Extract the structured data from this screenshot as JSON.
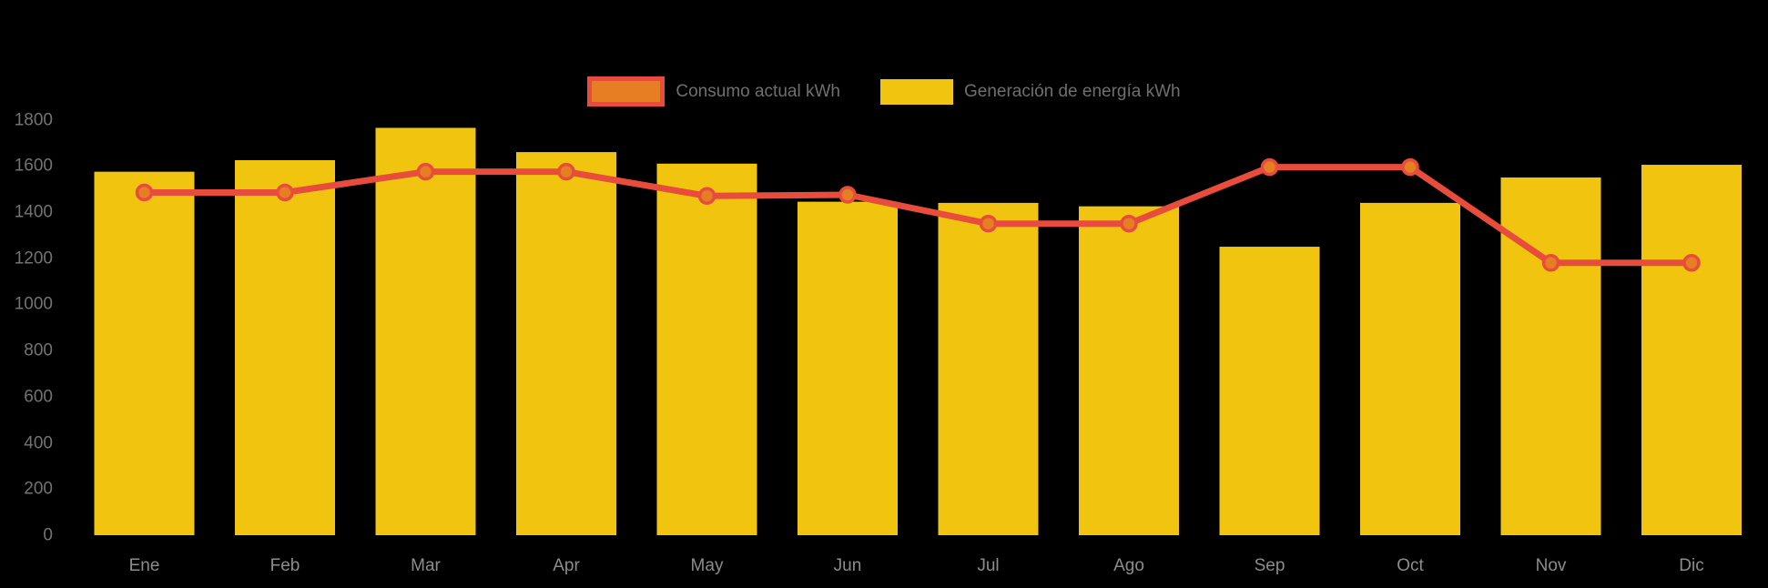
{
  "chart_data": {
    "type": "combo-bar-line",
    "title": "",
    "xlabel": "",
    "ylabel": "",
    "categories": [
      "Ene",
      "Feb",
      "Mar",
      "Apr",
      "May",
      "Jun",
      "Jul",
      "Ago",
      "Sep",
      "Oct",
      "Nov",
      "Dic"
    ],
    "series": [
      {
        "name": "Consumo actual kWh",
        "type": "line",
        "color": "#E74C3C",
        "point_fill": "#E67E22",
        "values": [
          1485,
          1485,
          1575,
          1575,
          1470,
          1475,
          1350,
          1350,
          1595,
          1595,
          1180,
          1180
        ]
      },
      {
        "name": "Generación de energía kWh",
        "type": "bar",
        "color": "#F1C40F",
        "values": [
          1575,
          1625,
          1765,
          1660,
          1610,
          1445,
          1440,
          1425,
          1250,
          1440,
          1550,
          1605
        ]
      }
    ],
    "ylim": [
      0,
      1800
    ],
    "yticks": [
      0,
      200,
      400,
      600,
      800,
      1000,
      1200,
      1400,
      1600,
      1800
    ],
    "legend_position": "top",
    "grid": false,
    "background_color": "#000000",
    "axis_label_color": "#737373",
    "category_label_color": "#8C8C8C",
    "legend_text_color": "#6F6F6F"
  }
}
